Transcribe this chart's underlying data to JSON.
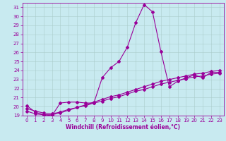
{
  "title": "",
  "xlabel": "Windchill (Refroidissement éolien,°C)",
  "ylabel": "",
  "background_color": "#c8eaf0",
  "line_color": "#990099",
  "grid_color": "#aacccc",
  "xlim_min": -0.5,
  "xlim_max": 23.5,
  "ylim_min": 19,
  "ylim_max": 31.5,
  "xticks": [
    0,
    1,
    2,
    3,
    4,
    5,
    6,
    7,
    8,
    9,
    10,
    11,
    12,
    13,
    14,
    15,
    16,
    17,
    18,
    19,
    20,
    21,
    22,
    23
  ],
  "yticks": [
    19,
    20,
    21,
    22,
    23,
    24,
    25,
    26,
    27,
    28,
    29,
    30,
    31
  ],
  "line1_x": [
    0,
    1,
    2,
    3,
    4,
    5,
    6,
    7,
    8,
    9,
    10,
    11,
    12,
    13,
    14,
    15,
    16,
    17,
    18,
    19,
    20,
    21,
    22,
    23
  ],
  "line1_y": [
    20.1,
    19.4,
    19.1,
    19.0,
    20.4,
    20.5,
    20.5,
    20.4,
    20.4,
    23.2,
    24.3,
    25.0,
    26.6,
    29.3,
    31.3,
    30.5,
    26.1,
    22.2,
    22.8,
    23.2,
    23.5,
    23.2,
    23.8,
    23.8
  ],
  "line2_x": [
    0,
    1,
    2,
    3,
    4,
    5,
    6,
    7,
    8,
    9,
    10,
    11,
    12,
    13,
    14,
    15,
    16,
    17,
    18,
    19,
    20,
    21,
    22,
    23
  ],
  "line2_y": [
    19.5,
    19.2,
    19.1,
    19.1,
    19.3,
    19.6,
    19.9,
    20.1,
    20.4,
    20.6,
    20.9,
    21.1,
    21.4,
    21.7,
    21.9,
    22.2,
    22.5,
    22.7,
    22.9,
    23.1,
    23.3,
    23.4,
    23.6,
    23.7
  ],
  "line3_x": [
    0,
    1,
    2,
    3,
    4,
    5,
    6,
    7,
    8,
    9,
    10,
    11,
    12,
    13,
    14,
    15,
    16,
    17,
    18,
    19,
    20,
    21,
    22,
    23
  ],
  "line3_y": [
    19.8,
    19.5,
    19.3,
    19.2,
    19.4,
    19.7,
    19.9,
    20.2,
    20.5,
    20.8,
    21.1,
    21.3,
    21.6,
    21.9,
    22.2,
    22.5,
    22.8,
    23.0,
    23.2,
    23.4,
    23.6,
    23.7,
    23.9,
    24.0
  ],
  "tick_fontsize": 5.0,
  "xlabel_fontsize": 5.5,
  "linewidth": 0.8,
  "markersize": 2.0
}
